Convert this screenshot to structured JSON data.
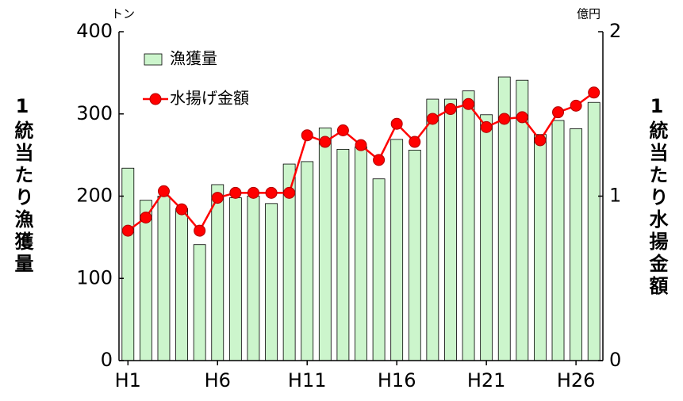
{
  "chart_data": {
    "type": "bar_line",
    "y_label": "1統当たり漁獲量",
    "y2_label": "1統当たり水揚金額",
    "y_unit": "トン",
    "y2_unit": "億円",
    "categories": [
      "H1",
      null,
      null,
      null,
      null,
      "H6",
      null,
      null,
      null,
      null,
      "H11",
      null,
      null,
      null,
      null,
      "H16",
      null,
      null,
      null,
      null,
      "H21",
      null,
      null,
      null,
      null,
      "H26",
      null
    ],
    "series": [
      {
        "name": "漁獲量",
        "type": "bar",
        "color": "#ccf5cc",
        "values": [
          234,
          195,
          200,
          185,
          141,
          214,
          198,
          200,
          191,
          239,
          242,
          283,
          257,
          260,
          221,
          269,
          256,
          318,
          318,
          328,
          299,
          345,
          341,
          275,
          292,
          282,
          314
        ]
      },
      {
        "name": "水揚げ金額",
        "type": "line",
        "axis": "y2",
        "color": "#ff0000",
        "values": [
          0.79,
          0.87,
          1.03,
          0.92,
          0.79,
          0.99,
          1.02,
          1.02,
          1.02,
          1.02,
          1.37,
          1.33,
          1.4,
          1.31,
          1.22,
          1.44,
          1.33,
          1.47,
          1.53,
          1.56,
          1.42,
          1.47,
          1.48,
          1.34,
          1.51,
          1.55,
          1.63
        ]
      }
    ],
    "ylim": [
      0,
      400
    ],
    "yticks": [
      0,
      100,
      200,
      300,
      400
    ],
    "y2lim": [
      0,
      2
    ],
    "y2ticks": [
      0,
      1,
      2
    ]
  }
}
